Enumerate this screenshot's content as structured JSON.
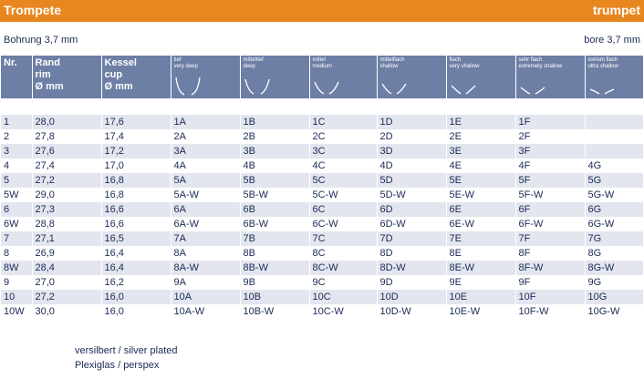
{
  "header": {
    "title_left": "Trompete",
    "title_right": "trumpet",
    "bore_left": "Bohrung 3,7 mm",
    "bore_right": "bore 3,7 mm"
  },
  "columns": [
    {
      "l1": "Nr.",
      "l2": "",
      "l3": ""
    },
    {
      "l1": "Rand",
      "l2": "rim",
      "l3": "Ø mm"
    },
    {
      "l1": "Kessel",
      "l2": "cup",
      "l3": "Ø mm"
    }
  ],
  "cups": [
    {
      "de": "tief",
      "en": "very deep",
      "shape": "v-very-deep"
    },
    {
      "de": "mitteltief",
      "en": "deep",
      "shape": "v-deep"
    },
    {
      "de": "mittel",
      "en": "medium",
      "shape": "v-medium"
    },
    {
      "de": "mittelflach",
      "en": "shallow",
      "shape": "v-shallow"
    },
    {
      "de": "flach",
      "en": "very shallow",
      "shape": "v-very-shallow"
    },
    {
      "de": "sehr flach",
      "en": "extremely shallow",
      "shape": "v-extremely-shallow"
    },
    {
      "de": "extrem flach",
      "en": "ultra shallow",
      "shape": "v-ultra-shallow"
    }
  ],
  "rows": [
    [
      "1",
      "28,0",
      "17,6",
      "1A",
      "1B",
      "1C",
      "1D",
      "1E",
      "1F",
      ""
    ],
    [
      "2",
      "27,8",
      "17,4",
      "2A",
      "2B",
      "2C",
      "2D",
      "2E",
      "2F",
      ""
    ],
    [
      "3",
      "27,6",
      "17,2",
      "3A",
      "3B",
      "3C",
      "3D",
      "3E",
      "3F",
      ""
    ],
    [
      "4",
      "27,4",
      "17,0",
      "4A",
      "4B",
      "4C",
      "4D",
      "4E",
      "4F",
      "4G"
    ],
    [
      "5",
      "27,2",
      "16,8",
      "5A",
      "5B",
      "5C",
      "5D",
      "5E",
      "5F",
      "5G"
    ],
    [
      "5W",
      "29,0",
      "16,8",
      "5A-W",
      "5B-W",
      "5C-W",
      "5D-W",
      "5E-W",
      "5F-W",
      "5G-W"
    ],
    [
      "6",
      "27,3",
      "16,6",
      "6A",
      "6B",
      "6C",
      "6D",
      "6E",
      "6F",
      "6G"
    ],
    [
      "6W",
      "28,8",
      "16,6",
      "6A-W",
      "6B-W",
      "6C-W",
      "6D-W",
      "6E-W",
      "6F-W",
      "6G-W"
    ],
    [
      "7",
      "27,1",
      "16,5",
      "7A",
      "7B",
      "7C",
      "7D",
      "7E",
      "7F",
      "7G"
    ],
    [
      "8",
      "26,9",
      "16,4",
      "8A",
      "8B",
      "8C",
      "8D",
      "8E",
      "8F",
      "8G"
    ],
    [
      "8W",
      "28,4",
      "16,4",
      "8A-W",
      "8B-W",
      "8C-W",
      "8D-W",
      "8E-W",
      "8F-W",
      "8G-W"
    ],
    [
      "9",
      "27,0",
      "16,2",
      "9A",
      "9B",
      "9C",
      "9D",
      "9E",
      "9F",
      "9G"
    ],
    [
      "10",
      "27,2",
      "16,0",
      "10A",
      "10B",
      "10C",
      "10D",
      "10E",
      "10F",
      "10G"
    ],
    [
      "10W",
      "30,0",
      "16,0",
      "10A-W",
      "10B-W",
      "10C-W",
      "10D-W",
      "10E-W",
      "10F-W",
      "10G-W"
    ]
  ],
  "legend": {
    "silver": "versilbert / silver plated",
    "plexi": "Plexiglas / perspex"
  },
  "colors": {
    "accent": "#e8861f",
    "header_bg": "#6e7fa6",
    "row_alt": "#e3e6ef",
    "text": "#1a2a55"
  }
}
